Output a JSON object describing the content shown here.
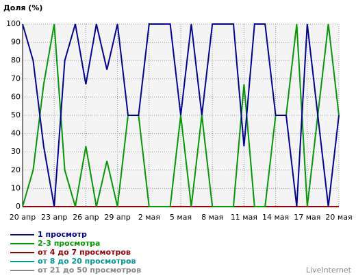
{
  "chart_data": {
    "type": "line",
    "title": "Доля (%)",
    "watermark": "LiveInternet",
    "categories": [
      "20 апр",
      null,
      null,
      "23 апр",
      null,
      null,
      "26 апр",
      null,
      null,
      "29 апр",
      null,
      null,
      "2 мая",
      null,
      null,
      "5 мая",
      null,
      null,
      "8 мая",
      null,
      null,
      "11 мая",
      null,
      null,
      "14 мая",
      null,
      null,
      "17 мая",
      null,
      null,
      "20 мая"
    ],
    "series": [
      {
        "name": "1 просмотр",
        "color": "#000099",
        "values": [
          100,
          80,
          33,
          0,
          80,
          100,
          67,
          100,
          75,
          100,
          50,
          50,
          100,
          100,
          100,
          50,
          100,
          50,
          100,
          100,
          100,
          33,
          100,
          100,
          50,
          50,
          0,
          100,
          50,
          0,
          50
        ]
      },
      {
        "name": "2-3 просмотра",
        "color": "#009900",
        "values": [
          0,
          20,
          67,
          100,
          20,
          0,
          33,
          0,
          25,
          0,
          50,
          50,
          0,
          0,
          0,
          50,
          0,
          50,
          0,
          0,
          0,
          67,
          0,
          0,
          50,
          50,
          100,
          0,
          50,
          100,
          50
        ]
      },
      {
        "name": "от 4 до 7 просмотров",
        "color": "#990000",
        "values": [
          0,
          0,
          0,
          0,
          0,
          0,
          0,
          0,
          0,
          0,
          0,
          0,
          0,
          0,
          0,
          0,
          0,
          0,
          0,
          0,
          0,
          0,
          0,
          0,
          0,
          0,
          0,
          0,
          0,
          0,
          0
        ]
      },
      {
        "name": "от 8 до 20 просмотров",
        "color": "#009999",
        "values": [
          0,
          0,
          0,
          0,
          0,
          0,
          0,
          0,
          0,
          0,
          0,
          0,
          0,
          0,
          0,
          0,
          0,
          0,
          0,
          0,
          0,
          0,
          0,
          0,
          0,
          0,
          0,
          0,
          0,
          0,
          0
        ]
      },
      {
        "name": "от 21 до 50 просмотров",
        "color": "#888888",
        "values": [
          0,
          0,
          0,
          0,
          0,
          0,
          0,
          0,
          0,
          0,
          0,
          0,
          0,
          0,
          0,
          0,
          0,
          0,
          0,
          0,
          0,
          0,
          0,
          0,
          0,
          0,
          0,
          0,
          0,
          0,
          0
        ]
      }
    ],
    "ylim": [
      0,
      100
    ],
    "yticks": [
      0,
      10,
      20,
      30,
      40,
      50,
      60,
      70,
      80,
      90,
      100
    ],
    "grid": true
  }
}
